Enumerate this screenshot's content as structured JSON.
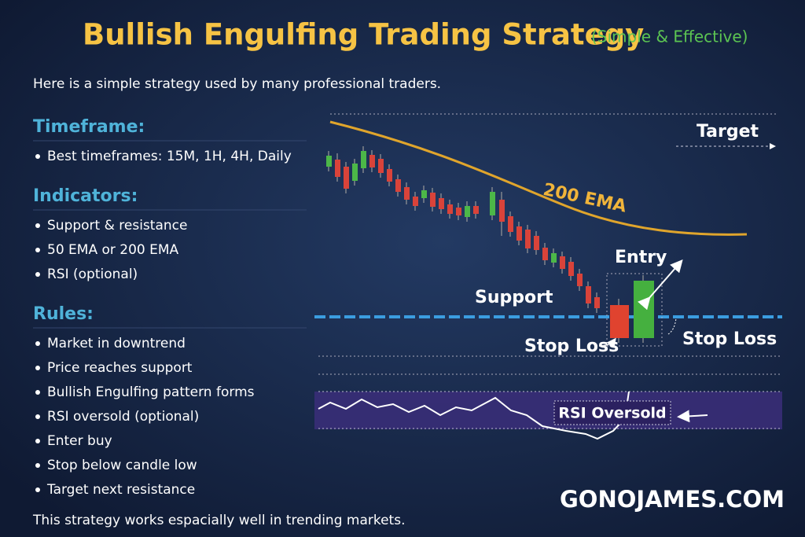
{
  "title": "Bullish Engulfing Trading Strategy",
  "subtitle": "(Simple & Effective)",
  "intro": "Here is a simple strategy used by many professional traders.",
  "sections": [
    {
      "heading": "Timeframe:",
      "items": [
        "Best timeframes: 15M, 1H, 4H, Daily"
      ]
    },
    {
      "heading": "Indicators:",
      "items": [
        "Support & resistance",
        "50 EMA or 200 EMA",
        "RSI (optional)"
      ]
    },
    {
      "heading": "Rules:",
      "items": [
        "Market in downtrend",
        "Price reaches support",
        "Bullish Engulfing pattern forms",
        "RSI oversold (optional)",
        "Enter buy",
        "Stop below candle low",
        "Target next resistance"
      ]
    }
  ],
  "chart_labels": {
    "target": "Target",
    "ema": "200 EMA",
    "entry": "Entry",
    "support": "Support",
    "stop_loss_left": "Stop Loss",
    "stop_loss_right": "Stop Loss",
    "rsi": "RSI Oversold"
  },
  "brand": "GONOJAMES.COM",
  "footer": "This strategy works espacially well in trending markets."
}
